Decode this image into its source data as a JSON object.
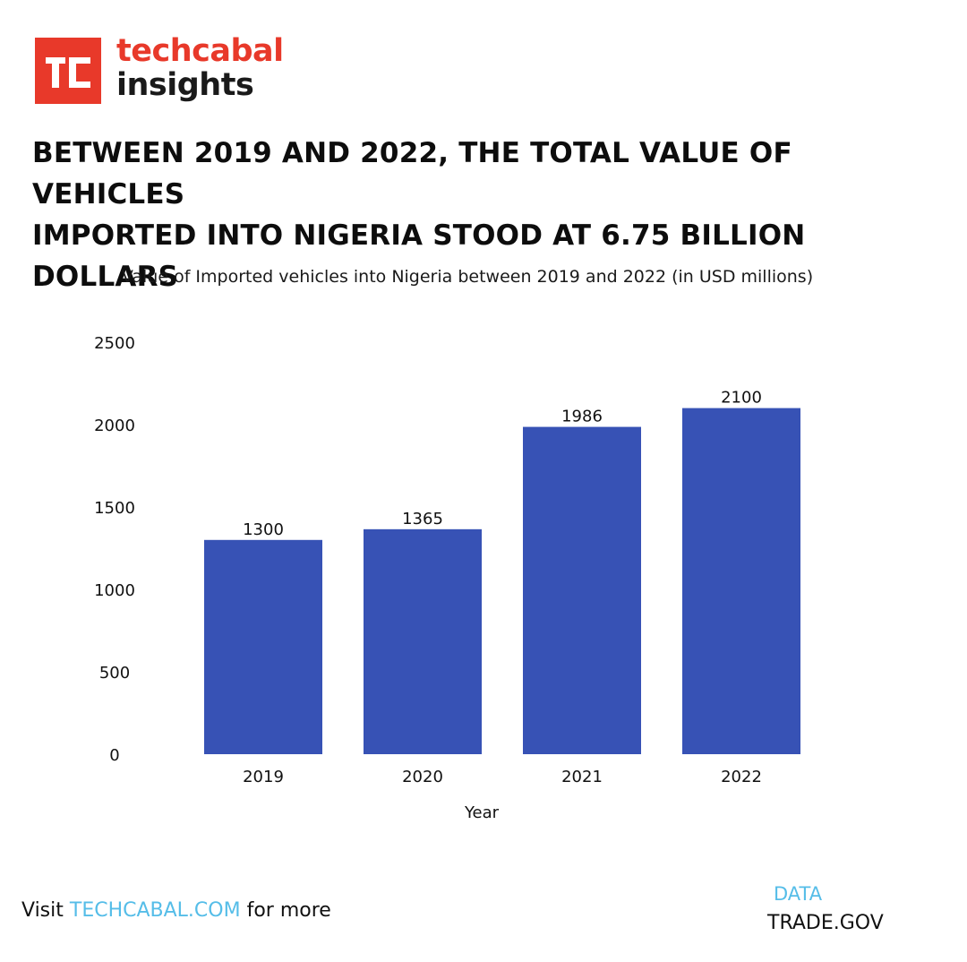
{
  "brand": {
    "word1": "techcabal",
    "word2": "insights",
    "mark_color": "#e8392a",
    "mark_glyph": "tc-logo-icon"
  },
  "headline": {
    "line1": "BETWEEN 2019 AND 2022, THE TOTAL VALUE OF VEHICLES",
    "line2": "IMPORTED INTO NIGERIA STOOD AT 6.75 BILLION DOLLARS"
  },
  "chart_data": {
    "type": "bar",
    "title": "Value of Imported vehicles into Nigeria between 2019 and 2022 (in USD millions)",
    "xlabel": "Year",
    "ylabel": "",
    "categories": [
      "2019",
      "2020",
      "2021",
      "2022"
    ],
    "values": [
      1300,
      1365,
      1986,
      2100
    ],
    "ylim": [
      0,
      2500
    ],
    "yticks": [
      0,
      500,
      1000,
      1500,
      2000,
      2500
    ],
    "bar_color": "#3752b5",
    "grid": false,
    "legend": "none"
  },
  "footer": {
    "prefix": "Visit ",
    "link": "TECHCABAL.COM",
    "suffix": " for more",
    "link_color": "#55bde8"
  },
  "source": {
    "label": "DATA",
    "name": "TRADE.GOV"
  }
}
